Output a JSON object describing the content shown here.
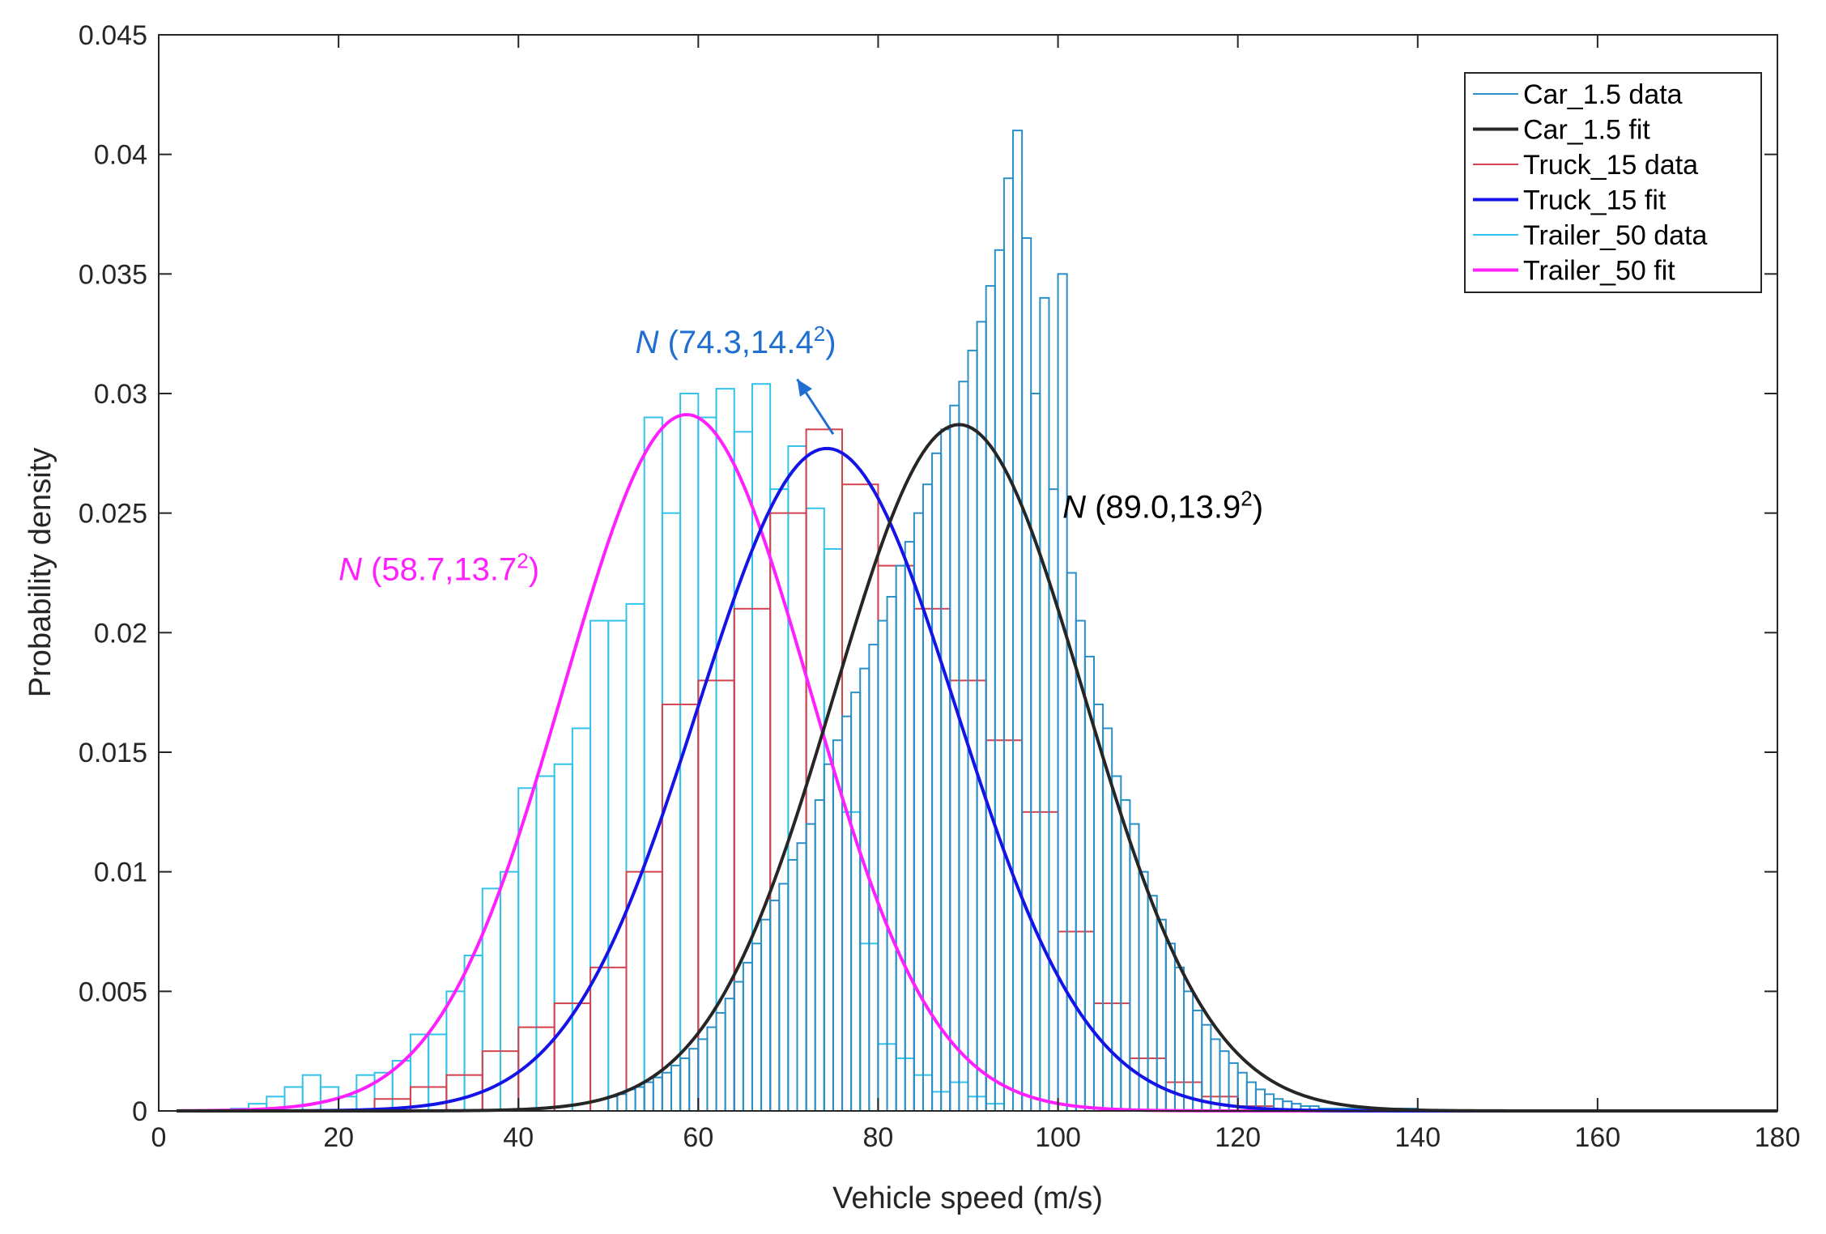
{
  "chart_data": {
    "type": "histogram",
    "xlabel": "Vehicle speed (m/s)",
    "ylabel": "Probability density",
    "xlim": [
      0,
      180
    ],
    "ylim": [
      0,
      0.045
    ],
    "xticks": [
      0,
      20,
      40,
      60,
      80,
      100,
      120,
      140,
      160,
      180
    ],
    "xtick_labels": [
      "0",
      "20",
      "40",
      "60",
      "80",
      "100",
      "120",
      "140",
      "160",
      "180"
    ],
    "yticks": [
      0,
      0.005,
      0.01,
      0.015,
      0.02,
      0.025,
      0.03,
      0.035,
      0.04,
      0.045
    ],
    "ytick_labels": [
      "0",
      "0.005",
      "0.01",
      "0.015",
      "0.02",
      "0.025",
      "0.03",
      "0.035",
      "0.04",
      "0.045"
    ],
    "legend_position": "top-right",
    "legend": [
      {
        "label": "Car_1.5 data",
        "color": "#2a8fc7",
        "kind": "data"
      },
      {
        "label": "Car_1.5 fit",
        "color": "#262626",
        "kind": "fit"
      },
      {
        "label": "Truck_15 data",
        "color": "#d2434f",
        "kind": "data"
      },
      {
        "label": "Truck_15 fit",
        "color": "#1414e6",
        "kind": "fit"
      },
      {
        "label": "Trailer_50 data",
        "color": "#33c3ea",
        "kind": "data"
      },
      {
        "label": "Trailer_50 fit",
        "color": "#ff1fff",
        "kind": "fit"
      }
    ],
    "series": [
      {
        "name": "Trailer_50 data",
        "type": "histogram",
        "color": "#33c3ea",
        "bin_edges": [
          8,
          10,
          12,
          14,
          16,
          18,
          20,
          22,
          24,
          26,
          28,
          30,
          32,
          34,
          36,
          38,
          40,
          42,
          44,
          46,
          48,
          50,
          52,
          54,
          56,
          58,
          60,
          62,
          64,
          66,
          68,
          70,
          72,
          74,
          76,
          78,
          80,
          82,
          84,
          86,
          88,
          90,
          92,
          94
        ],
        "values": [
          0.0001,
          0.0003,
          0.0006,
          0.001,
          0.0015,
          0.001,
          0.0006,
          0.0015,
          0.0016,
          0.0021,
          0.0032,
          0.0032,
          0.005,
          0.0065,
          0.0093,
          0.01,
          0.0135,
          0.014,
          0.0145,
          0.016,
          0.0205,
          0.0205,
          0.0212,
          0.029,
          0.025,
          0.03,
          0.029,
          0.0302,
          0.0284,
          0.0304,
          0.026,
          0.0278,
          0.0252,
          0.0235,
          0.0125,
          0.007,
          0.0028,
          0.0022,
          0.0015,
          0.0008,
          0.0012,
          0.0006,
          0.0003
        ]
      },
      {
        "name": "Truck_15 data",
        "type": "histogram",
        "color": "#d2434f",
        "bin_edges": [
          24,
          28,
          32,
          36,
          40,
          44,
          48,
          52,
          56,
          60,
          64,
          68,
          72,
          76,
          80,
          84,
          88,
          92,
          96,
          100,
          104,
          108,
          112,
          116,
          120,
          124
        ],
        "values": [
          0.0005,
          0.001,
          0.0015,
          0.0025,
          0.0035,
          0.0045,
          0.006,
          0.01,
          0.017,
          0.018,
          0.021,
          0.025,
          0.0285,
          0.0262,
          0.0228,
          0.021,
          0.018,
          0.0155,
          0.0125,
          0.0075,
          0.0045,
          0.0022,
          0.0012,
          0.0006,
          0.0002
        ]
      },
      {
        "name": "Car_1.5 data",
        "type": "histogram",
        "color": "#2a8fc7",
        "bin_edges": [
          50,
          51,
          52,
          53,
          54,
          55,
          56,
          57,
          58,
          59,
          60,
          61,
          62,
          63,
          64,
          65,
          66,
          67,
          68,
          69,
          70,
          71,
          72,
          73,
          74,
          75,
          76,
          77,
          78,
          79,
          80,
          81,
          82,
          83,
          84,
          85,
          86,
          87,
          88,
          89,
          90,
          91,
          92,
          93,
          94,
          95,
          96,
          97,
          98,
          99,
          100,
          101,
          102,
          103,
          104,
          105,
          106,
          107,
          108,
          109,
          110,
          111,
          112,
          113,
          114,
          115,
          116,
          117,
          118,
          119,
          120,
          121,
          122,
          123,
          124,
          125,
          126,
          127,
          128,
          129,
          130,
          131,
          132,
          133,
          134,
          135,
          136,
          137,
          138,
          139,
          140
        ],
        "values": [
          0.0006,
          0.0007,
          0.0009,
          0.001,
          0.0012,
          0.0014,
          0.0016,
          0.0019,
          0.0022,
          0.0026,
          0.003,
          0.0035,
          0.0041,
          0.0047,
          0.0054,
          0.0062,
          0.007,
          0.008,
          0.0088,
          0.0095,
          0.0105,
          0.0112,
          0.012,
          0.013,
          0.0145,
          0.0155,
          0.0165,
          0.0175,
          0.0185,
          0.0195,
          0.0205,
          0.0215,
          0.0228,
          0.0238,
          0.025,
          0.0262,
          0.0275,
          0.0285,
          0.0295,
          0.0305,
          0.0318,
          0.033,
          0.0345,
          0.036,
          0.039,
          0.041,
          0.0365,
          0.03,
          0.034,
          0.026,
          0.035,
          0.0225,
          0.0205,
          0.019,
          0.017,
          0.016,
          0.014,
          0.013,
          0.012,
          0.01,
          0.009,
          0.008,
          0.007,
          0.006,
          0.005,
          0.0042,
          0.0036,
          0.003,
          0.0025,
          0.002,
          0.0016,
          0.0012,
          0.0009,
          0.0007,
          0.0005,
          0.0004,
          0.0003,
          0.0002,
          0.0002,
          0.0001,
          0.0001,
          0.0001,
          0.0001,
          0.0001,
          0.0001,
          0.0001,
          0.0001,
          0.0001,
          0.0001,
          0.0001
        ]
      },
      {
        "name": "Trailer_50 fit",
        "type": "line",
        "color": "#ff1fff",
        "dist": {
          "family": "normal",
          "mean": 58.7,
          "sd": 13.7
        },
        "x_range": [
          2,
          180
        ]
      },
      {
        "name": "Truck_15 fit",
        "type": "line",
        "color": "#1414e6",
        "dist": {
          "family": "normal",
          "mean": 74.3,
          "sd": 14.4
        },
        "x_range": [
          2,
          180
        ]
      },
      {
        "name": "Car_1.5 fit",
        "type": "line",
        "color": "#262626",
        "dist": {
          "family": "normal",
          "mean": 89.0,
          "sd": 13.9
        },
        "x_range": [
          2,
          180
        ]
      }
    ],
    "annotations": [
      {
        "id": "trailer",
        "n": "N",
        "text": " (58.7,13.7",
        "sup": "2",
        "close": ")",
        "color": "#ff1fff",
        "x": 20,
        "y": 0.0222
      },
      {
        "id": "truck",
        "n": "N",
        "text": " (74.3,14.4",
        "sup": "2",
        "close": ")",
        "color": "#1f6fd1",
        "x": 53,
        "y": 0.0317
      },
      {
        "id": "car",
        "n": "N",
        "text": " (89.0,13.9",
        "sup": "2",
        "close": ")",
        "color": "#000000",
        "x": 100.5,
        "y": 0.0248
      }
    ],
    "arrow": {
      "from": [
        75,
        0.0283
      ],
      "to": [
        71,
        0.0306
      ],
      "color": "#1f6fd1"
    }
  }
}
